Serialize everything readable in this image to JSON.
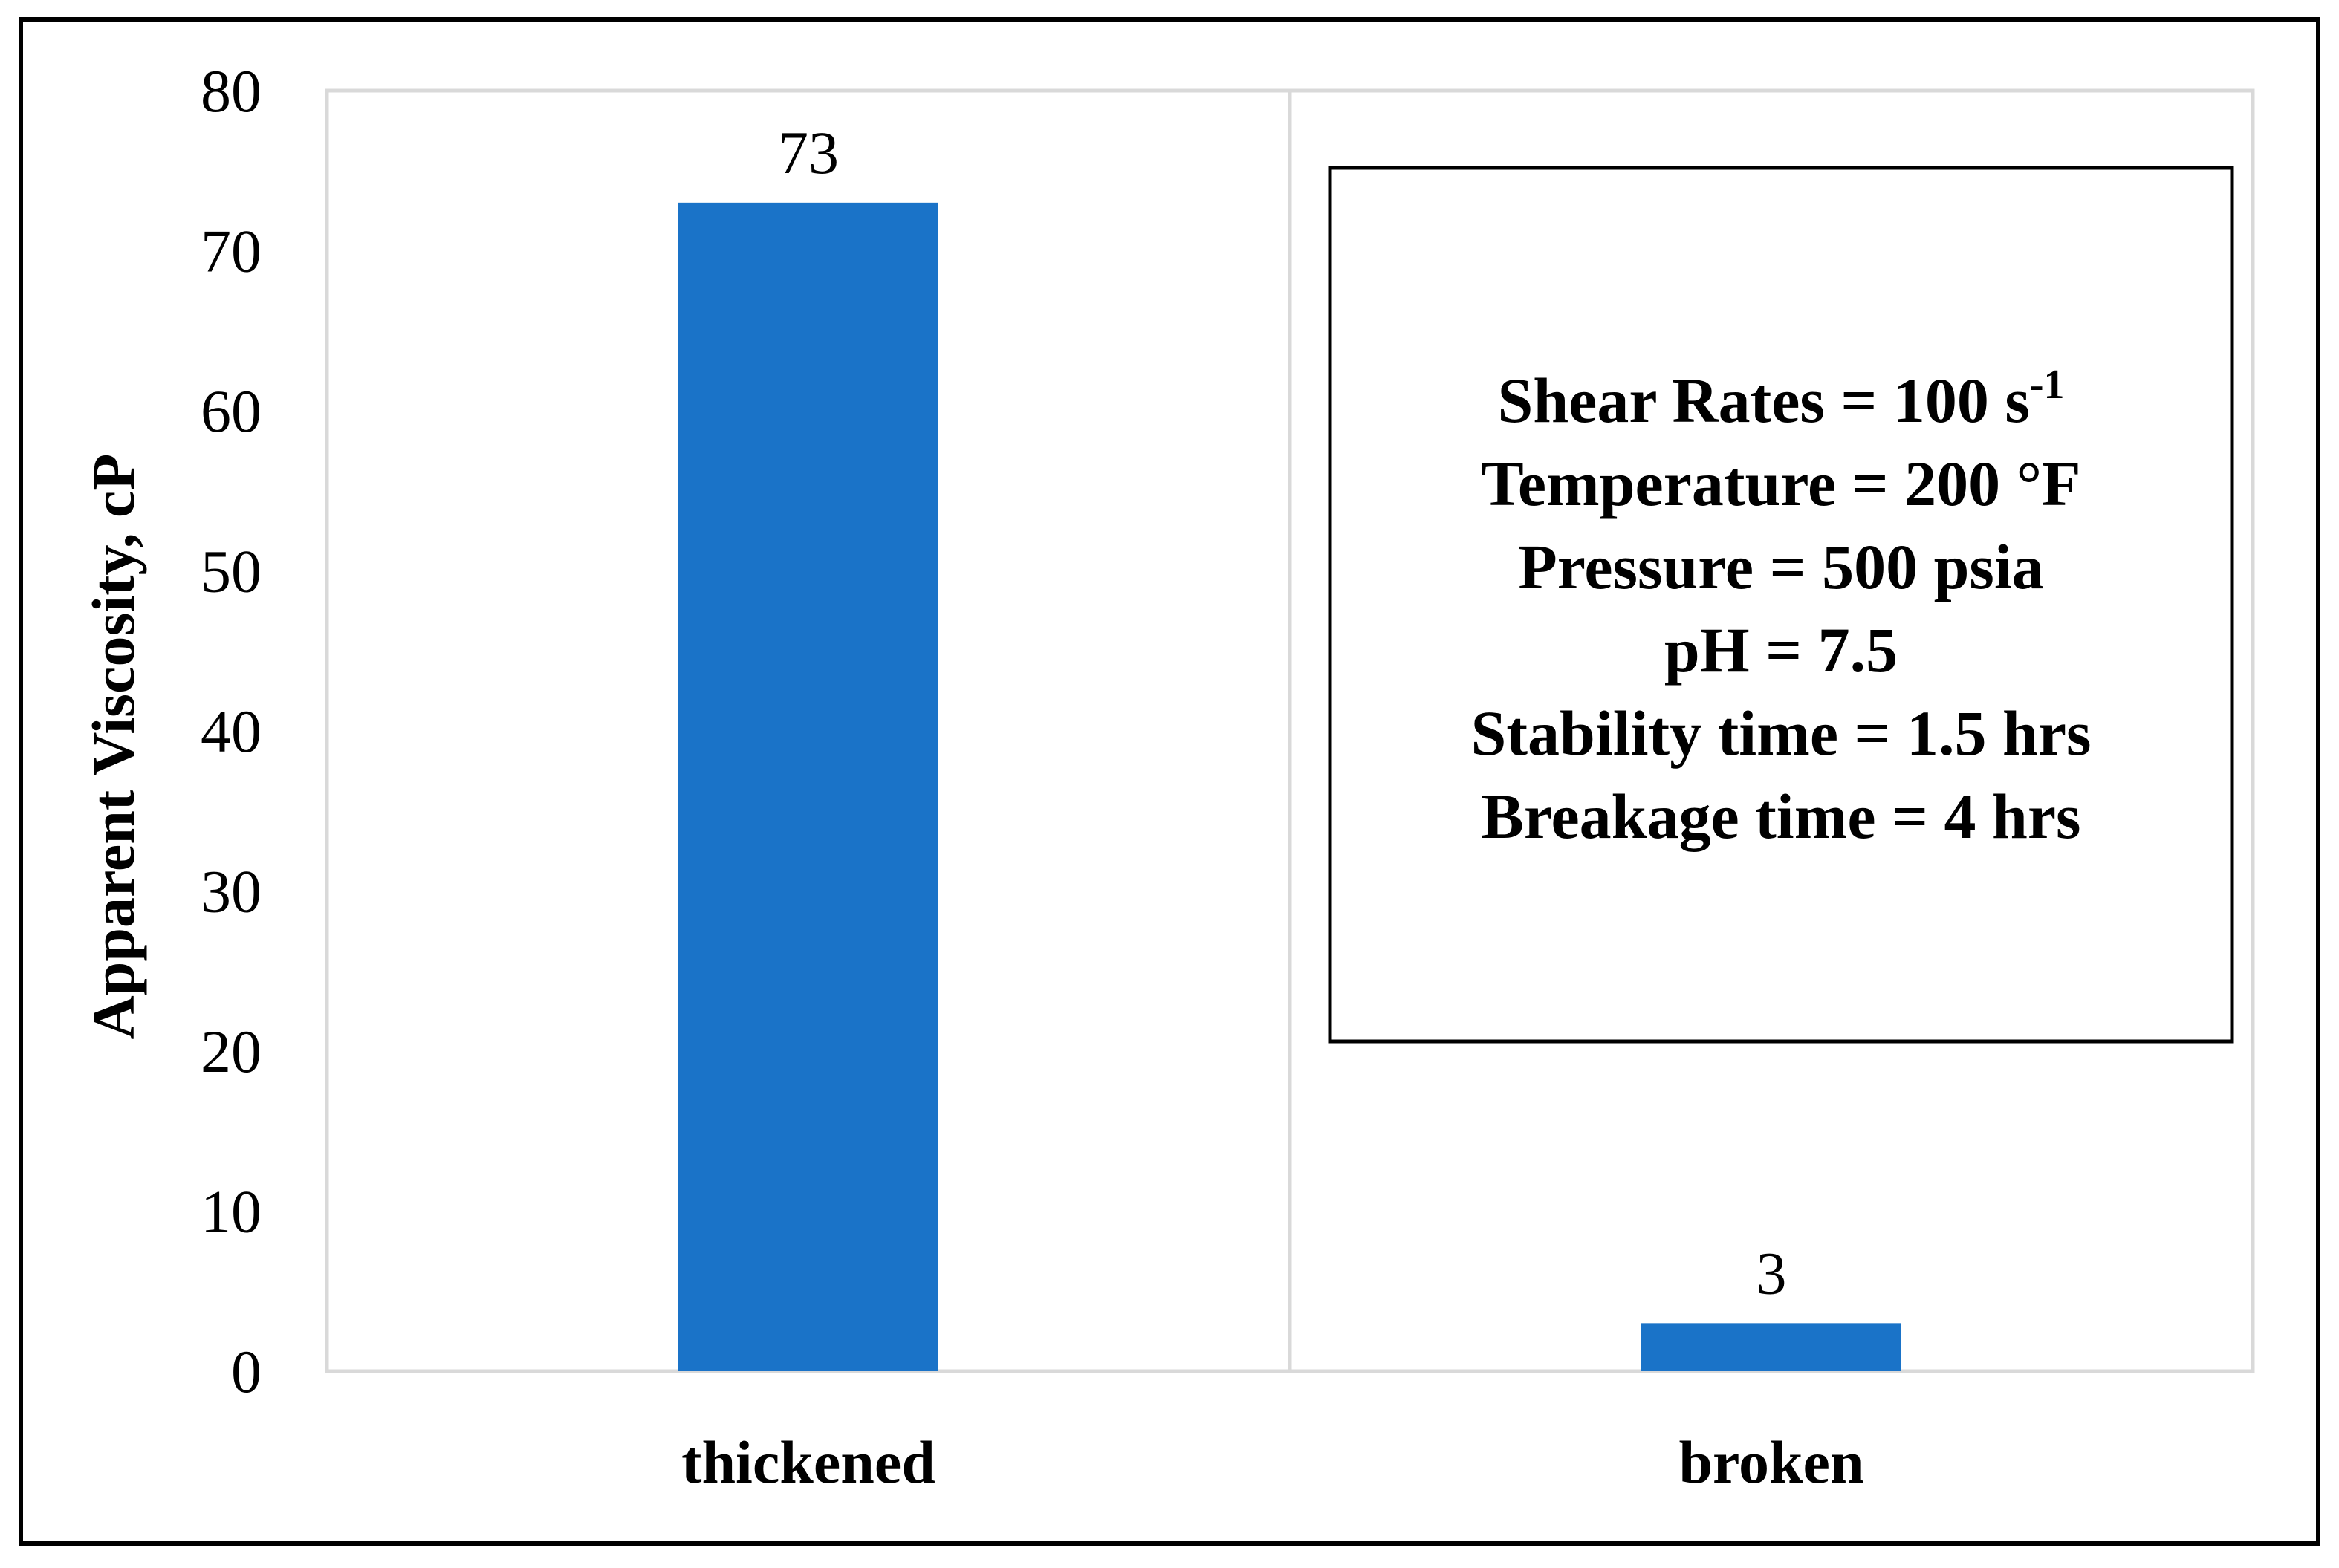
{
  "chart_data": {
    "type": "bar",
    "title": "",
    "categories": [
      "thickened",
      "broken"
    ],
    "values": [
      73,
      3
    ],
    "data_labels": [
      "73",
      "3"
    ],
    "ylabel": "Apparent Viscosity, cP",
    "xlabel": "",
    "ylim": [
      0,
      80
    ],
    "yticks": [
      0,
      10,
      20,
      30,
      40,
      50,
      60,
      70,
      80
    ],
    "grid": true,
    "bar_color": "#1a73c8",
    "annotation_box": {
      "lines": [
        {
          "text": "Shear Rates = 100 s",
          "sup": "-1"
        },
        {
          "text": "Temperature = 200 °F",
          "sup": ""
        },
        {
          "text": "Pressure = 500 psia",
          "sup": ""
        },
        {
          "text": "pH = 7.5",
          "sup": ""
        },
        {
          "text": "Stability time = 1.5 hrs",
          "sup": ""
        },
        {
          "text": "Breakage time = 4 hrs",
          "sup": ""
        }
      ]
    }
  }
}
